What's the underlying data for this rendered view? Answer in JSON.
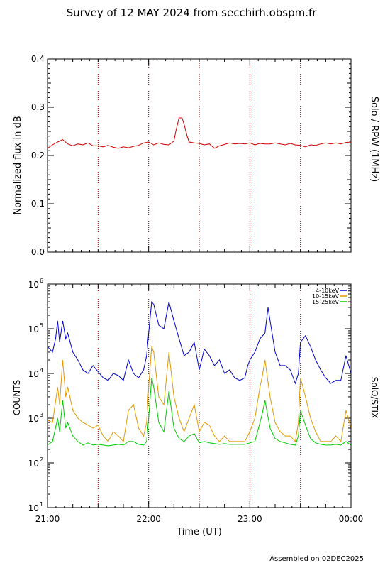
{
  "title": "Survey of 12 MAY 2024 from secchirh.obspm.fr",
  "footer": "Assembled on 02DEC2025",
  "xlabel": "Time (UT)",
  "x_tick_labels": [
    "21:00",
    "22:00",
    "23:00",
    "00:00"
  ],
  "colors": {
    "rpw": "#cc0000",
    "low": "#0000cc",
    "mid": "#e69900",
    "high": "#00cc00",
    "marker": "#990000"
  },
  "chart_data": [
    {
      "type": "line",
      "panel": "top",
      "ylabel": "Normalized flux in dB",
      "right_label": "Solo / RPW (1MHz)",
      "xlim": [
        21.0,
        24.0
      ],
      "ylim": [
        0.0,
        0.4
      ],
      "y_ticks": [
        "0.0",
        "0.1",
        "0.2",
        "0.3",
        "0.4"
      ],
      "vertical_markers": [
        21.5,
        22.0,
        22.5,
        23.0,
        23.5
      ],
      "series": [
        {
          "x": [
            21.0,
            21.05,
            21.1,
            21.15,
            21.2,
            21.25,
            21.3,
            21.35,
            21.4,
            21.45,
            21.5,
            21.55,
            21.6,
            21.65,
            21.7,
            21.75,
            21.8,
            21.85,
            21.9,
            21.95,
            22.0,
            22.05,
            22.1,
            22.15,
            22.2,
            22.25,
            22.27,
            22.3,
            22.33,
            22.35,
            22.38,
            22.4,
            22.45,
            22.5,
            22.55,
            22.6,
            22.65,
            22.7,
            22.75,
            22.8,
            22.85,
            22.9,
            22.95,
            23.0,
            23.05,
            23.1,
            23.15,
            23.2,
            23.25,
            23.3,
            23.35,
            23.4,
            23.45,
            23.5,
            23.55,
            23.6,
            23.65,
            23.7,
            23.75,
            23.8,
            23.85,
            23.9,
            23.95,
            24.0
          ],
          "y": [
            0.215,
            0.222,
            0.228,
            0.233,
            0.224,
            0.22,
            0.224,
            0.222,
            0.226,
            0.22,
            0.22,
            0.218,
            0.221,
            0.217,
            0.215,
            0.218,
            0.216,
            0.219,
            0.221,
            0.226,
            0.228,
            0.222,
            0.226,
            0.223,
            0.222,
            0.23,
            0.252,
            0.278,
            0.278,
            0.265,
            0.24,
            0.228,
            0.226,
            0.225,
            0.222,
            0.224,
            0.215,
            0.22,
            0.223,
            0.226,
            0.224,
            0.225,
            0.224,
            0.226,
            0.222,
            0.225,
            0.224,
            0.224,
            0.226,
            0.224,
            0.222,
            0.225,
            0.222,
            0.221,
            0.218,
            0.222,
            0.221,
            0.224,
            0.226,
            0.224,
            0.226,
            0.224,
            0.227,
            0.228
          ]
        }
      ]
    },
    {
      "type": "line",
      "panel": "bottom",
      "ylabel": "COUNTS",
      "right_label": "SolO/STIX",
      "xlim": [
        21.0,
        24.0
      ],
      "ylim": [
        10,
        1000000
      ],
      "yscale": "log",
      "y_ticks": [
        {
          "base": "10",
          "exp": "1"
        },
        {
          "base": "10",
          "exp": "2"
        },
        {
          "base": "10",
          "exp": "3"
        },
        {
          "base": "10",
          "exp": "4"
        },
        {
          "base": "10",
          "exp": "5"
        },
        {
          "base": "10",
          "exp": "6"
        }
      ],
      "legend": "top-right",
      "vertical_markers": [
        21.5,
        22.0,
        22.5,
        23.0,
        23.5
      ],
      "series": [
        {
          "name": "4-10keV",
          "x": [
            21.0,
            21.05,
            21.08,
            21.1,
            21.12,
            21.15,
            21.18,
            21.2,
            21.25,
            21.3,
            21.35,
            21.4,
            21.45,
            21.5,
            21.55,
            21.6,
            21.65,
            21.7,
            21.75,
            21.8,
            21.85,
            21.9,
            21.95,
            21.98,
            22.0,
            22.03,
            22.05,
            22.1,
            22.15,
            22.2,
            22.25,
            22.3,
            22.35,
            22.4,
            22.45,
            22.5,
            22.55,
            22.6,
            22.65,
            22.7,
            22.75,
            22.8,
            22.85,
            22.9,
            22.95,
            22.98,
            23.0,
            23.05,
            23.1,
            23.15,
            23.18,
            23.2,
            23.25,
            23.3,
            23.35,
            23.4,
            23.45,
            23.48,
            23.5,
            23.55,
            23.6,
            23.65,
            23.7,
            23.75,
            23.8,
            23.85,
            23.9,
            23.95,
            24.0
          ],
          "y": [
            40000,
            30000,
            60000,
            150000,
            50000,
            150000,
            60000,
            80000,
            30000,
            20000,
            12000,
            10000,
            15000,
            11000,
            8000,
            7000,
            10000,
            9000,
            7000,
            20000,
            10000,
            8000,
            12000,
            25000,
            80000,
            400000,
            350000,
            120000,
            100000,
            400000,
            150000,
            60000,
            25000,
            30000,
            50000,
            12000,
            35000,
            25000,
            15000,
            20000,
            10000,
            12000,
            8000,
            7000,
            8000,
            15000,
            20000,
            30000,
            60000,
            80000,
            300000,
            150000,
            30000,
            15000,
            15000,
            12000,
            6000,
            10000,
            50000,
            70000,
            40000,
            20000,
            12000,
            8000,
            6000,
            7000,
            7000,
            25000,
            10000
          ]
        },
        {
          "name": "10-15keV",
          "x": [
            21.0,
            21.05,
            21.1,
            21.12,
            21.15,
            21.18,
            21.2,
            21.25,
            21.3,
            21.35,
            21.4,
            21.45,
            21.5,
            21.55,
            21.6,
            21.65,
            21.7,
            21.75,
            21.8,
            21.85,
            21.9,
            21.95,
            21.98,
            22.0,
            22.03,
            22.05,
            22.1,
            22.15,
            22.2,
            22.25,
            22.3,
            22.35,
            22.4,
            22.45,
            22.5,
            22.55,
            22.6,
            22.65,
            22.7,
            22.75,
            22.8,
            22.85,
            22.9,
            22.95,
            23.0,
            23.05,
            23.1,
            23.12,
            23.15,
            23.2,
            23.25,
            23.3,
            23.35,
            23.4,
            23.45,
            23.48,
            23.5,
            23.55,
            23.6,
            23.65,
            23.7,
            23.75,
            23.8,
            23.85,
            23.9,
            23.95,
            24.0
          ],
          "y": [
            900,
            800,
            5000,
            2000,
            20000,
            3000,
            5000,
            1500,
            1000,
            800,
            700,
            600,
            700,
            400,
            300,
            500,
            400,
            300,
            1500,
            2000,
            600,
            400,
            800,
            5000,
            40000,
            30000,
            3000,
            2000,
            30000,
            3000,
            1000,
            500,
            1000,
            2000,
            500,
            800,
            700,
            400,
            300,
            400,
            300,
            300,
            300,
            300,
            500,
            1000,
            5000,
            8000,
            20000,
            3000,
            800,
            500,
            400,
            400,
            300,
            800,
            8000,
            3000,
            1000,
            500,
            300,
            300,
            300,
            400,
            300,
            1500,
            600
          ]
        },
        {
          "name": "15-25keV",
          "x": [
            21.0,
            21.05,
            21.1,
            21.12,
            21.15,
            21.18,
            21.2,
            21.25,
            21.3,
            21.35,
            21.4,
            21.45,
            21.5,
            21.55,
            21.6,
            21.65,
            21.7,
            21.75,
            21.8,
            21.85,
            21.9,
            21.95,
            21.98,
            22.0,
            22.03,
            22.05,
            22.1,
            22.15,
            22.2,
            22.25,
            22.3,
            22.35,
            22.4,
            22.45,
            22.5,
            22.55,
            22.6,
            22.65,
            22.7,
            22.75,
            22.8,
            22.85,
            22.9,
            22.95,
            23.0,
            23.05,
            23.1,
            23.12,
            23.15,
            23.2,
            23.25,
            23.3,
            23.35,
            23.4,
            23.45,
            23.48,
            23.5,
            23.55,
            23.6,
            23.65,
            23.7,
            23.75,
            23.8,
            23.85,
            23.9,
            23.95,
            24.0
          ],
          "y": [
            250,
            300,
            1000,
            500,
            2500,
            600,
            800,
            400,
            300,
            250,
            280,
            250,
            260,
            250,
            240,
            250,
            260,
            250,
            300,
            300,
            260,
            250,
            300,
            1000,
            8000,
            5000,
            800,
            500,
            4000,
            600,
            350,
            300,
            400,
            450,
            280,
            300,
            280,
            270,
            260,
            270,
            260,
            260,
            260,
            260,
            280,
            300,
            800,
            1200,
            2500,
            600,
            350,
            300,
            280,
            260,
            250,
            400,
            1500,
            700,
            350,
            280,
            260,
            250,
            250,
            260,
            250,
            300,
            250
          ]
        }
      ]
    }
  ]
}
